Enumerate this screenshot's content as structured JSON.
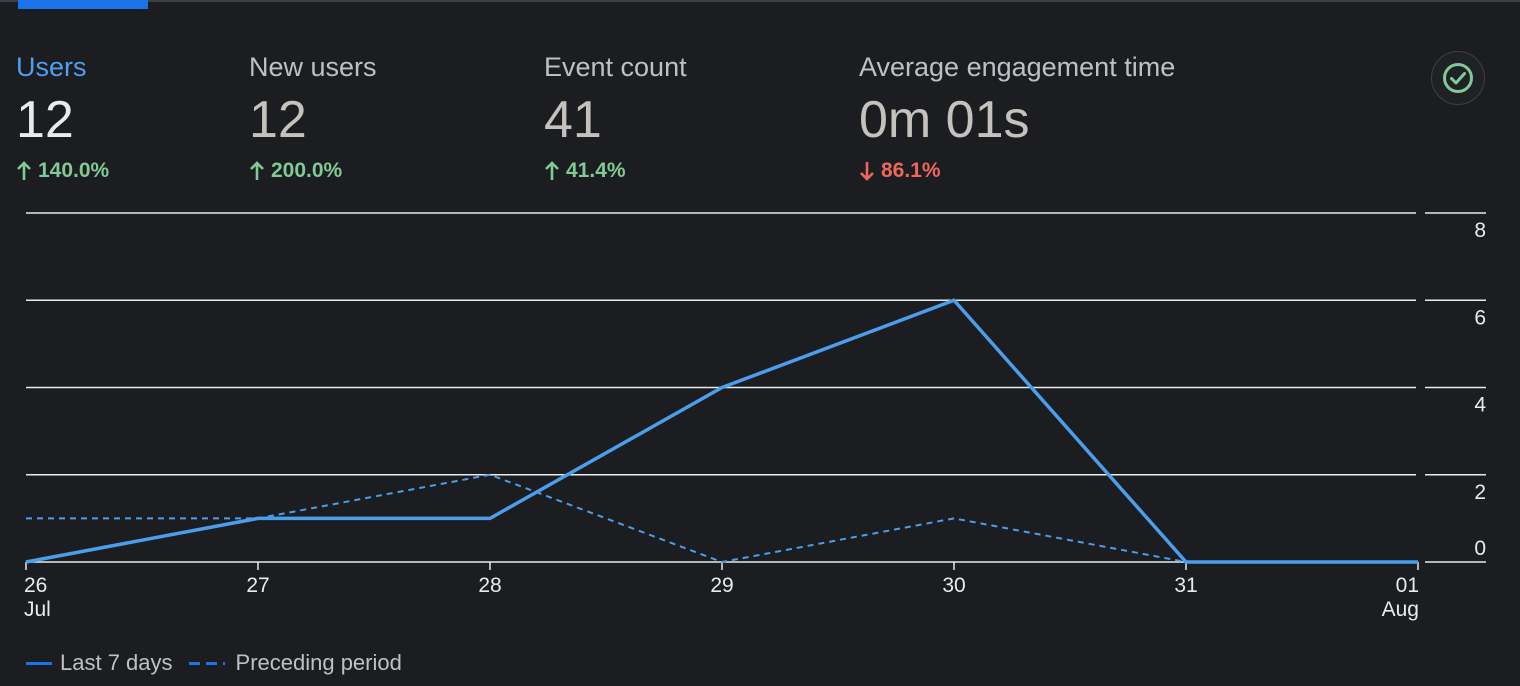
{
  "metrics": [
    {
      "label": "Users",
      "value": "12",
      "change": "140.0%",
      "direction": "up"
    },
    {
      "label": "New users",
      "value": "12",
      "change": "200.0%",
      "direction": "up"
    },
    {
      "label": "Event count",
      "value": "41",
      "change": "41.4%",
      "direction": "up"
    },
    {
      "label": "Average engagement time",
      "value": "0m 01s",
      "change": "86.1%",
      "direction": "down"
    }
  ],
  "check_icon": "check-circle-icon",
  "colors": {
    "accent": "#4d9ef5",
    "series": "#4a9eeb",
    "up": "#81c995",
    "down": "#ee675c"
  },
  "chart_data": {
    "type": "line",
    "x": [
      "26",
      "27",
      "28",
      "29",
      "30",
      "31",
      "01"
    ],
    "x_sublabels": [
      "Jul",
      "",
      "",
      "",
      "",
      "",
      "Aug"
    ],
    "y_ticks": [
      0,
      2,
      4,
      6,
      8
    ],
    "ylim": [
      0,
      8
    ],
    "y_axis_side": "right",
    "grid": true,
    "series": [
      {
        "name": "Last 7 days",
        "style": "solid",
        "values": [
          0,
          1,
          1,
          4,
          6,
          0,
          0
        ]
      },
      {
        "name": "Preceding period",
        "style": "dashed",
        "values": [
          1,
          1,
          2,
          0,
          1,
          0,
          null
        ]
      }
    ]
  },
  "legend": [
    {
      "label": "Last 7 days",
      "style": "solid"
    },
    {
      "label": "Preceding period",
      "style": "dashed"
    }
  ]
}
